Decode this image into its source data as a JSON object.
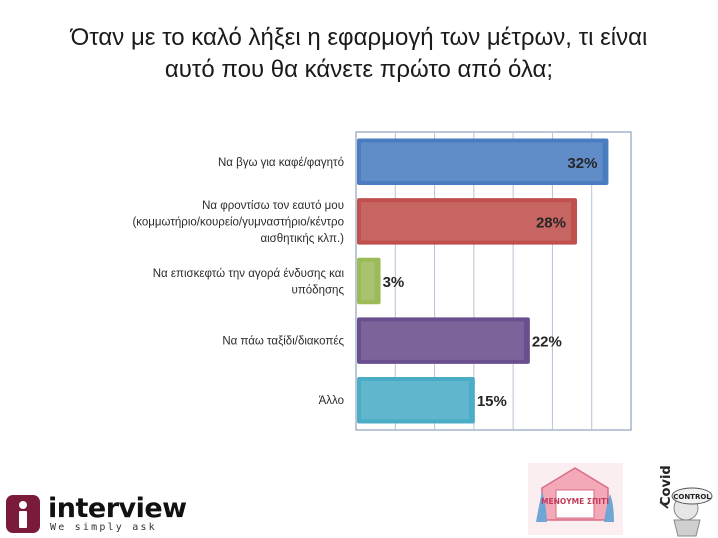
{
  "title_lines": [
    "Όταν με το καλό λήξει η εφαρμογή των μέτρων, τι είναι",
    "αυτό που θα κάνετε πρώτο από όλα;"
  ],
  "chart_data": {
    "type": "bar",
    "orientation": "horizontal",
    "categories": [
      [
        "Να βγω για καφέ/φαγητό"
      ],
      [
        "Να φροντίσω τον εαυτό μου",
        "(κομμωτήριο/κουρείο/γυμναστήριο/κέντρο",
        "αισθητικής κλπ.)"
      ],
      [
        "Να επισκεφτώ την αγορά ένδυσης και",
        "υπόδησης"
      ],
      [
        "Να πάω ταξίδι/διακοπές"
      ],
      [
        "Άλλο"
      ]
    ],
    "values": [
      32,
      28,
      3,
      22,
      15
    ],
    "data_labels": [
      "32%",
      "28%",
      "3%",
      "22%",
      "15%"
    ],
    "colors": [
      "#4a7dc0",
      "#c0504d",
      "#9bbb59",
      "#6a4f8e",
      "#4bacc6"
    ],
    "xlim": [
      0,
      35
    ],
    "grid": true
  },
  "logos": {
    "interview_word": "interview",
    "interview_tagline": "We simply ask",
    "menoume_spiti": "ΜΕΝΟΥΜΕ ΣΠΙΤΙ",
    "covid": "Covid",
    "control": "CONTROL"
  },
  "colors": {
    "interview_badge": "#7a1b3a",
    "grid": "#7a8fb0"
  }
}
